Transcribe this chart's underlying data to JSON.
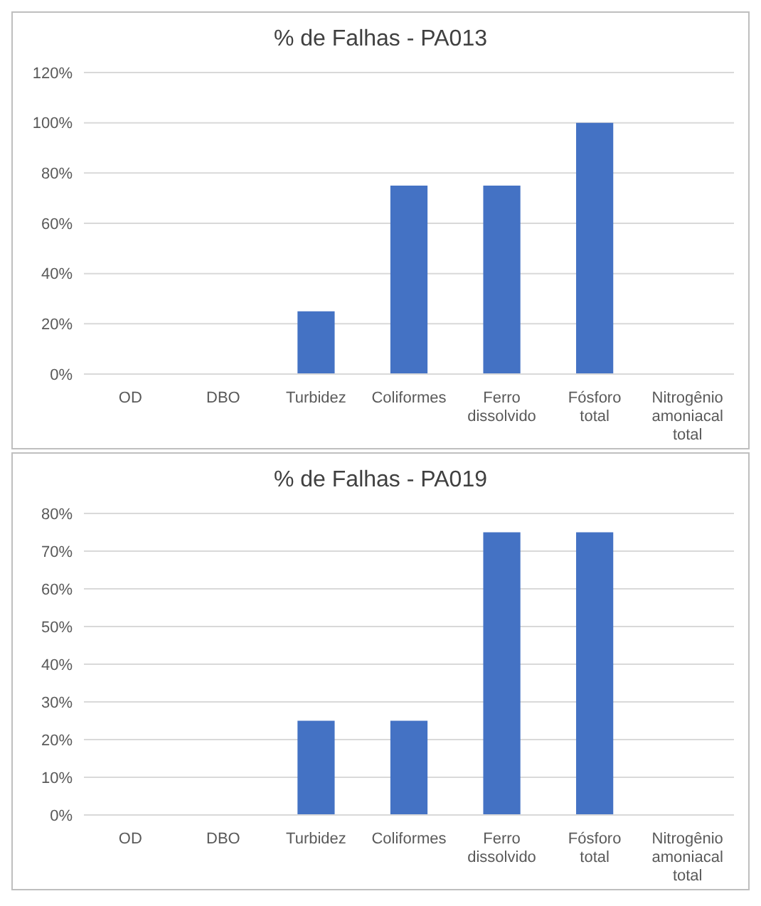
{
  "chart_data": [
    {
      "type": "bar",
      "title": "% de Falhas - PA013",
      "categories": [
        "OD",
        "DBO",
        "Turbidez",
        "Coliformes",
        "Ferro dissolvido",
        "Fósforo total",
        "Nitrogênio amoniacal total"
      ],
      "values": [
        0,
        0,
        25,
        75,
        75,
        100,
        0
      ],
      "color": "#4472c4",
      "ylim": [
        0,
        120
      ],
      "yticks": [
        {
          "value": 0,
          "label": "0%"
        },
        {
          "value": 20,
          "label": "20%"
        },
        {
          "value": 40,
          "label": "40%"
        },
        {
          "value": 60,
          "label": "60%"
        },
        {
          "value": 80,
          "label": "80%"
        },
        {
          "value": 100,
          "label": "100%"
        },
        {
          "value": 120,
          "label": "120%"
        }
      ],
      "grid": "y",
      "legend": false
    },
    {
      "type": "bar",
      "title": "% de Falhas - PA019",
      "categories": [
        "OD",
        "DBO",
        "Turbidez",
        "Coliformes",
        "Ferro dissolvido",
        "Fósforo total",
        "Nitrogênio amoniacal total"
      ],
      "values": [
        0,
        0,
        25,
        25,
        75,
        75,
        0
      ],
      "color": "#4472c4",
      "ylim": [
        0,
        80
      ],
      "yticks": [
        {
          "value": 0,
          "label": "0%"
        },
        {
          "value": 10,
          "label": "10%"
        },
        {
          "value": 20,
          "label": "20%"
        },
        {
          "value": 30,
          "label": "30%"
        },
        {
          "value": 40,
          "label": "40%"
        },
        {
          "value": 50,
          "label": "50%"
        },
        {
          "value": 60,
          "label": "60%"
        },
        {
          "value": 70,
          "label": "70%"
        },
        {
          "value": 80,
          "label": "80%"
        }
      ],
      "grid": "y",
      "legend": false
    }
  ]
}
